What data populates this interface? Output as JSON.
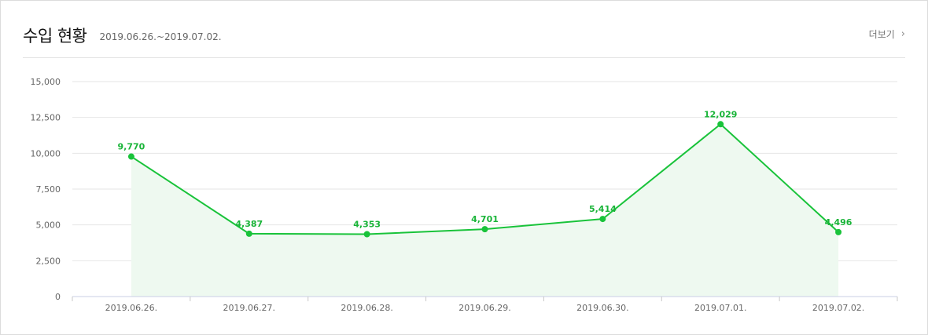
{
  "header": {
    "title": "수입 현황",
    "period": "2019.06.26.~2019.07.02.",
    "more_label": "더보기",
    "more_icon": "chevron-right-icon"
  },
  "colors": {
    "line": "#19c33a",
    "fill": "#eef9f0",
    "grid": "#e6e6e6",
    "axis": "#c9cfe6"
  },
  "chart_data": {
    "type": "line",
    "title": "",
    "xlabel": "",
    "ylabel": "",
    "categories": [
      "2019.06.26.",
      "2019.06.27.",
      "2019.06.28.",
      "2019.06.29.",
      "2019.06.30.",
      "2019.07.01.",
      "2019.07.02."
    ],
    "values": [
      9770,
      4387,
      4353,
      4701,
      5414,
      12029,
      4496
    ],
    "value_labels": [
      "9,770",
      "4,387",
      "4,353",
      "4,701",
      "5,414",
      "12,029",
      "4,496"
    ],
    "ylim": [
      0,
      15000
    ],
    "y_ticks": [
      0,
      2500,
      5000,
      7500,
      10000,
      12500,
      15000
    ],
    "y_tick_labels": [
      "0",
      "2,500",
      "5,000",
      "7,500",
      "10,000",
      "12,500",
      "15,000"
    ],
    "grid": true,
    "area_fill": true,
    "legend": "none"
  }
}
